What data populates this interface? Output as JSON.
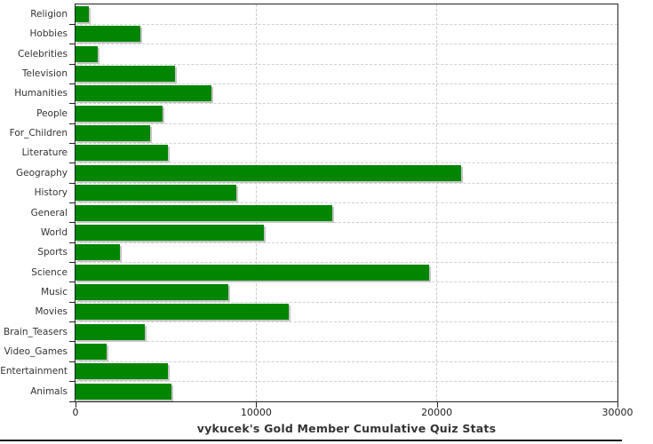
{
  "chart_data": {
    "type": "bar",
    "orientation": "horizontal",
    "title": "vykucek's Gold Member Cumulative Quiz Stats",
    "categories": [
      "Religion",
      "Hobbies",
      "Celebrities",
      "Television",
      "Humanities",
      "People",
      "For_Children",
      "Literature",
      "Geography",
      "History",
      "General",
      "World",
      "Sports",
      "Science",
      "Music",
      "Movies",
      "Brain_Teasers",
      "Video_Games",
      "Entertainment",
      "Animals"
    ],
    "values": [
      750,
      3600,
      1250,
      5500,
      7500,
      4800,
      4150,
      5100,
      21350,
      8900,
      14200,
      10450,
      2450,
      19550,
      8450,
      11800,
      3850,
      1700,
      5100,
      5300
    ],
    "xlim": [
      0,
      30000
    ],
    "x_ticks": [
      0,
      10000,
      20000,
      30000
    ],
    "x_tick_labels": [
      "0",
      "10000",
      "20000",
      "30000"
    ],
    "xlabel": "",
    "ylabel": "",
    "grid": true,
    "legend": "none",
    "colors": {
      "bar_fill": "#028602",
      "bar_shadow": "#c6c6c6",
      "h_grid": "#cfcfcf",
      "v_grid": "#c9c9d2",
      "frame": "#222222",
      "text": "#333333",
      "bottom_rule": "#1a1a1a"
    }
  }
}
